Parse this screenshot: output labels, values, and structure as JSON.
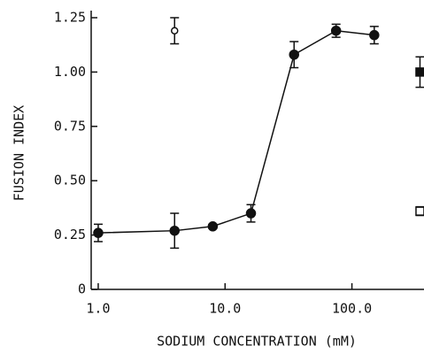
{
  "chart_data": {
    "type": "scatter",
    "x_label": "SODIUM CONCENTRATION (mM)",
    "y_label": "FUSION INDEX",
    "x_scale": "log",
    "xlim": [
      0.88,
      370
    ],
    "xticks": [
      {
        "value": 1,
        "label": "1.0"
      },
      {
        "value": 10,
        "label": "10.0"
      },
      {
        "value": 100,
        "label": "100.0"
      }
    ],
    "ylim": [
      0,
      1.25
    ],
    "yticks": [
      0,
      0.25,
      {
        "value": 0.5,
        "label": "0.50"
      },
      0.75,
      {
        "value": 1,
        "label": "1.00"
      },
      1.25
    ],
    "series": [
      {
        "color": "#111111",
        "marker": "circle",
        "filled": true,
        "connected": true,
        "x": [
          1,
          4,
          8,
          16,
          35,
          75,
          150
        ],
        "values": [
          0.26,
          0.27,
          0.29,
          0.35,
          1.08,
          1.19,
          1.17
        ],
        "errors": [
          0.04,
          0.08,
          0.01,
          0.04,
          0.06,
          0.03,
          0.04
        ]
      },
      {
        "color": "#111111",
        "marker": "circle",
        "filled": false,
        "connected": false,
        "x": [
          4
        ],
        "values": [
          1.19
        ],
        "errors": [
          0.06
        ]
      },
      {
        "color": "#111111",
        "marker": "square",
        "filled": true,
        "connected": false,
        "x": [
          344
        ],
        "values": [
          1.0
        ],
        "errors": [
          0.07
        ]
      },
      {
        "color": "#111111",
        "marker": "square",
        "filled": false,
        "connected": false,
        "x": [
          344
        ],
        "values": [
          0.36
        ],
        "errors": [
          0.02
        ]
      }
    ]
  }
}
